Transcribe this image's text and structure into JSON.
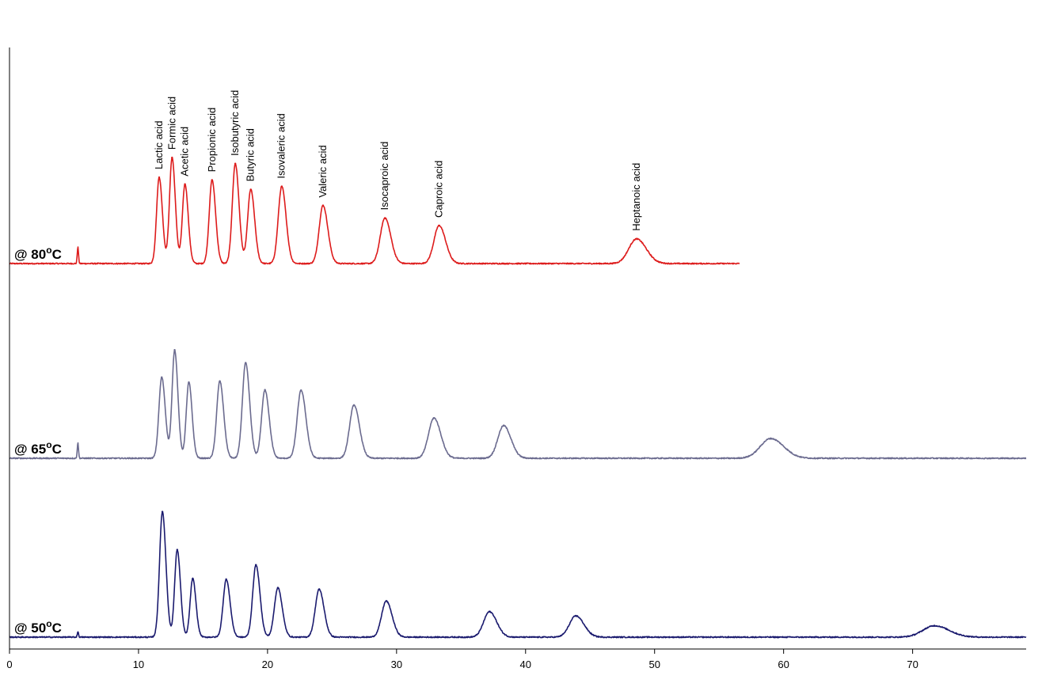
{
  "chart_data": {
    "type": "line",
    "title": "",
    "xlabel": "",
    "ylabel": "",
    "xlim": [
      0,
      78.8
    ],
    "x_ticks": [
      0,
      10,
      20,
      30,
      40,
      50,
      60,
      70
    ],
    "y_axis_ticks": false,
    "grid": false,
    "legend": "none",
    "series": [
      {
        "trace_label": "@ 80",
        "temperature_unit": "oC",
        "color": "#dd1b1b",
        "x_end": 56.6,
        "void_marker": {
          "x": 5.3,
          "height": 0.43
        },
        "peaks": [
          {
            "name": "Lactic acid",
            "x": 11.6,
            "height": 2.27,
            "width": 0.2
          },
          {
            "name": "Formic acid",
            "x": 12.6,
            "height": 2.79,
            "width": 0.2
          },
          {
            "name": "Acetic acid",
            "x": 13.6,
            "height": 2.09,
            "width": 0.2
          },
          {
            "name": "Propionic acid",
            "x": 15.7,
            "height": 2.2,
            "width": 0.22
          },
          {
            "name": "Isobutyric acid",
            "x": 17.5,
            "height": 2.63,
            "width": 0.23
          },
          {
            "name": "Butyric acid",
            "x": 18.7,
            "height": 1.95,
            "width": 0.24
          },
          {
            "name": "Isovaleric acid",
            "x": 21.1,
            "height": 2.03,
            "width": 0.27
          },
          {
            "name": "Valeric acid",
            "x": 24.3,
            "height": 1.53,
            "width": 0.3
          },
          {
            "name": "Isocaproic acid",
            "x": 29.1,
            "height": 1.2,
            "width": 0.36
          },
          {
            "name": "Caproic acid",
            "x": 33.3,
            "height": 1.0,
            "width": 0.4
          },
          {
            "name": "Heptanoic acid",
            "x": 48.6,
            "height": 0.65,
            "width": 0.6
          }
        ]
      },
      {
        "trace_label": "@ 65",
        "temperature_unit": "oC",
        "color": "#6b6b8f",
        "x_end": 78.8,
        "void_marker": {
          "x": 5.3,
          "height": 0.4
        },
        "peaks": [
          {
            "name": "Lactic acid",
            "x": 11.8,
            "height": 2.13,
            "width": 0.22
          },
          {
            "name": "Formic acid",
            "x": 12.8,
            "height": 2.85,
            "width": 0.2
          },
          {
            "name": "Acetic acid",
            "x": 13.9,
            "height": 2.0,
            "width": 0.2
          },
          {
            "name": "Propionic acid",
            "x": 16.3,
            "height": 2.03,
            "width": 0.24
          },
          {
            "name": "Isobutyric acid",
            "x": 18.3,
            "height": 2.51,
            "width": 0.25
          },
          {
            "name": "Butyric acid",
            "x": 19.8,
            "height": 1.8,
            "width": 0.26
          },
          {
            "name": "Isovaleric acid",
            "x": 22.6,
            "height": 1.79,
            "width": 0.3
          },
          {
            "name": "Valeric acid",
            "x": 26.7,
            "height": 1.4,
            "width": 0.34
          },
          {
            "name": "Isocaproic acid",
            "x": 32.9,
            "height": 1.06,
            "width": 0.42
          },
          {
            "name": "Caproic acid",
            "x": 38.3,
            "height": 0.86,
            "width": 0.45
          },
          {
            "name": "Heptanoic acid",
            "x": 59.0,
            "height": 0.52,
            "width": 0.8
          }
        ]
      },
      {
        "trace_label": "@ 50",
        "temperature_unit": "oC",
        "color": "#1a1a6e",
        "x_end": 78.8,
        "void_marker": {
          "x": 5.3,
          "height": 0.14
        },
        "peaks": [
          {
            "name": "Lactic acid",
            "x": 11.85,
            "height": 3.3,
            "width": 0.22
          },
          {
            "name": "Formic acid",
            "x": 13.0,
            "height": 2.3,
            "width": 0.2
          },
          {
            "name": "Acetic acid",
            "x": 14.2,
            "height": 1.54,
            "width": 0.2
          },
          {
            "name": "Propionic acid",
            "x": 16.8,
            "height": 1.52,
            "width": 0.24
          },
          {
            "name": "Isobutyric acid",
            "x": 19.1,
            "height": 1.9,
            "width": 0.25
          },
          {
            "name": "Butyric acid",
            "x": 20.8,
            "height": 1.3,
            "width": 0.27
          },
          {
            "name": "Isovaleric acid",
            "x": 24.0,
            "height": 1.26,
            "width": 0.3
          },
          {
            "name": "Valeric acid",
            "x": 29.2,
            "height": 0.95,
            "width": 0.36
          },
          {
            "name": "Isocaproic acid",
            "x": 37.2,
            "height": 0.67,
            "width": 0.45
          },
          {
            "name": "Caproic acid",
            "x": 43.9,
            "height": 0.56,
            "width": 0.5
          },
          {
            "name": "Heptanoic acid",
            "x": 71.7,
            "height": 0.3,
            "width": 0.9
          }
        ]
      }
    ]
  }
}
